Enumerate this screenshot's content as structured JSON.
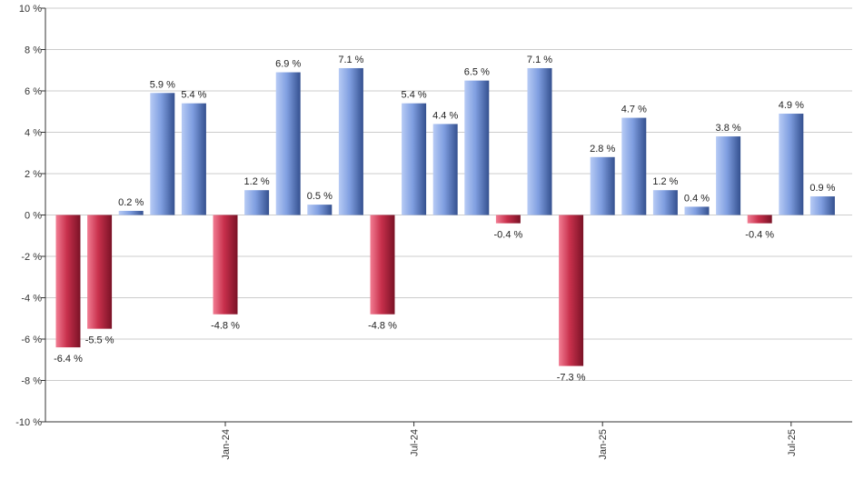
{
  "chart_data": {
    "type": "bar",
    "title": "",
    "xlabel": "",
    "ylabel": "",
    "ylim": [
      -10,
      10
    ],
    "y_ticks": [
      "10 %",
      "8 %",
      "6 %",
      "4 %",
      "2 %",
      "0 %",
      "-2 %",
      "-4 %",
      "-6 %",
      "-8 %",
      "-10 %"
    ],
    "y_tick_values": [
      10,
      8,
      6,
      4,
      2,
      0,
      -2,
      -4,
      -6,
      -8,
      -10
    ],
    "x_tick_labels": [
      {
        "label": "Jan-24",
        "index": 5
      },
      {
        "label": "Jul-24",
        "index": 11
      },
      {
        "label": "Jan-25",
        "index": 17
      },
      {
        "label": "Jul-25",
        "index": 23
      }
    ],
    "values": [
      -6.4,
      -5.5,
      0.2,
      5.9,
      5.4,
      -4.8,
      1.2,
      6.9,
      0.5,
      7.1,
      -4.8,
      5.4,
      4.4,
      6.5,
      -0.4,
      7.1,
      -7.3,
      2.8,
      4.7,
      1.2,
      0.4,
      3.8,
      -0.4,
      4.9,
      0.9
    ],
    "labels": [
      "-6.4 %",
      "-5.5 %",
      "0.2 %",
      "5.9 %",
      "5.4 %",
      "-4.8 %",
      "1.2 %",
      "6.9 %",
      "0.5 %",
      "7.1 %",
      "-4.8 %",
      "5.4 %",
      "4.4 %",
      "6.5 %",
      "-0.4 %",
      "7.1 %",
      "-7.3 %",
      "2.8 %",
      "4.7 %",
      "1.2 %",
      "0.4 %",
      "3.8 %",
      "-0.4 %",
      "4.9 %",
      "0.9 %"
    ],
    "grid": true,
    "colors": {
      "positive": "#6f8fd8",
      "positive_light": "#a9c0f2",
      "positive_dark": "#3a5494",
      "negative": "#c8304c",
      "negative_light": "#f07088",
      "negative_dark": "#801428",
      "grid": "#cccccc",
      "axis": "#333333"
    }
  }
}
